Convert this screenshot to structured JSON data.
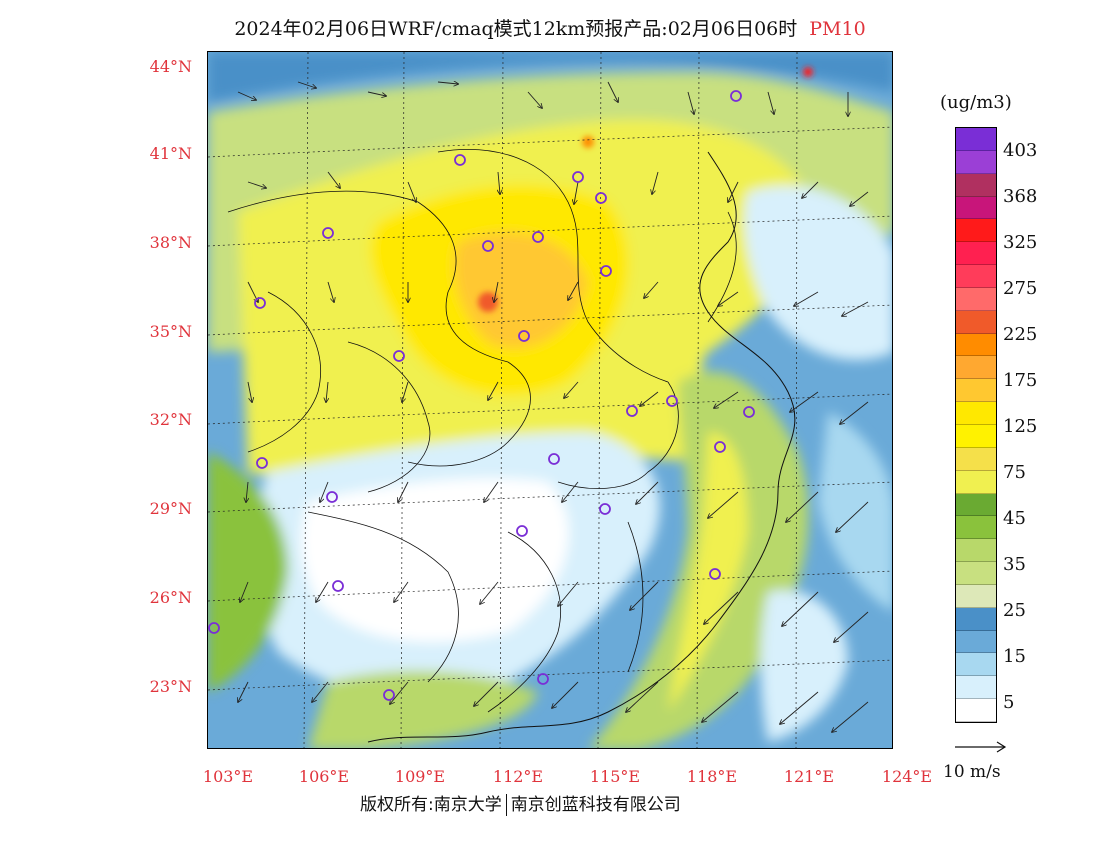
{
  "title": {
    "main": "2024年02月06日WRF/cmaq模式12km预报产品:02月06日06时",
    "variable": "PM10"
  },
  "lat_labels": [
    "44°N",
    "41°N",
    "38°N",
    "35°N",
    "32°N",
    "29°N",
    "26°N",
    "23°N"
  ],
  "lon_labels": [
    "103°E",
    "106°E",
    "109°E",
    "112°E",
    "115°E",
    "118°E",
    "121°E",
    "124°E"
  ],
  "colorbar": {
    "units": "(ug/m3)",
    "labels": [
      "403",
      "368",
      "325",
      "275",
      "225",
      "175",
      "125",
      "75",
      "45",
      "35",
      "25",
      "15",
      "5"
    ],
    "colors": [
      "#7a2ed6",
      "#9b3fd6",
      "#b03060",
      "#c8157a",
      "#ff1a1a",
      "#ff2050",
      "#ff3c5a",
      "#ff6a6a",
      "#f05a2a",
      "#ff8c00",
      "#ffa830",
      "#ffc830",
      "#ffe800",
      "#fff200",
      "#f5e04a",
      "#f0f050",
      "#6aaa32",
      "#8ac23c",
      "#b8d86a",
      "#c8e080",
      "#dde8b8",
      "#4a90c8",
      "#6aaad8",
      "#a8d8f0",
      "#d8f0fc",
      "#ffffff"
    ]
  },
  "reference_vector": {
    "label": "10 m/s"
  },
  "copyright": {
    "left": "版权所有:南京大学",
    "right": "南京创蓝科技有限公司"
  },
  "colors": {
    "label_red": "#e0343c"
  }
}
